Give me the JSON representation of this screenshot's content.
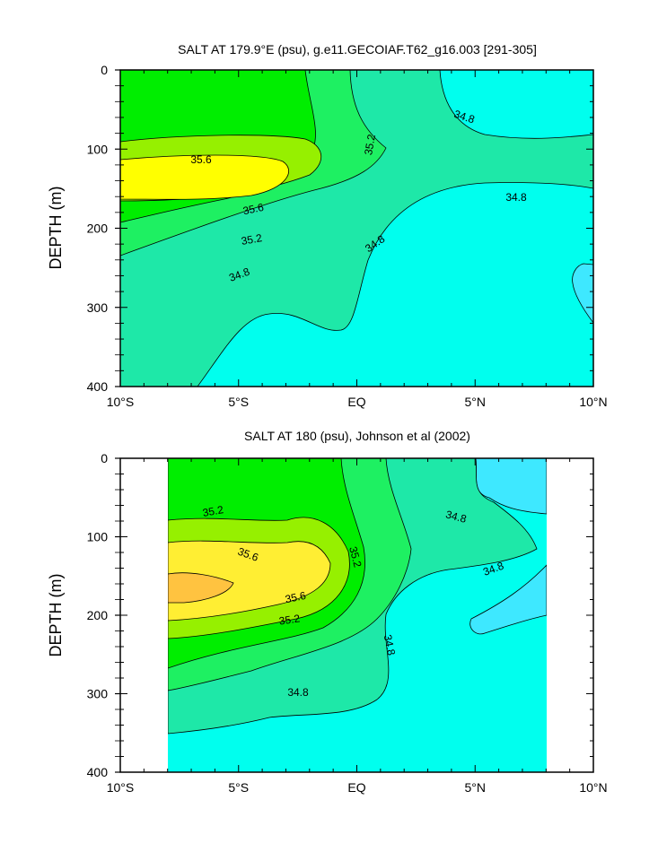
{
  "chart_data": [
    {
      "type": "contour",
      "title": "SALT AT 179.9°E (psu), g.e11.GECOIAF.T62_g16.003 [291-305]",
      "ylabel": "DEPTH (m)",
      "xlabel": "",
      "x_ticks": [
        "10°S",
        "5°S",
        "EQ",
        "5°N",
        "10°N"
      ],
      "x_range": [
        -10,
        10
      ],
      "y_ticks": [
        "0",
        "100",
        "200",
        "300",
        "400"
      ],
      "y_range": [
        0,
        400
      ],
      "y_inverted": true,
      "contour_levels": [
        34.6,
        34.8,
        35.0,
        35.2,
        35.4,
        35.6
      ],
      "fill_colors": [
        "#3ee8ff",
        "#00ffee",
        "#1ee8a8",
        "#1ef062",
        "#00ee00",
        "#96f000",
        "#ffff00"
      ],
      "contour_labels": [
        {
          "text": "34.8",
          "lat": 4.9,
          "depth": 60
        },
        {
          "text": "35.6",
          "lat": -6.4,
          "depth": 115
        },
        {
          "text": "35.2",
          "lat": 1.1,
          "depth": 118
        },
        {
          "text": "34.8",
          "lat": 6.1,
          "depth": 165
        },
        {
          "text": "35.6",
          "lat": -4.6,
          "depth": 175
        },
        {
          "text": "35.2",
          "lat": -4.8,
          "depth": 215
        },
        {
          "text": "34.8",
          "lat": 1.1,
          "depth": 223
        },
        {
          "text": "34.8",
          "lat": -5.1,
          "depth": 265
        }
      ]
    },
    {
      "type": "contour",
      "title": "SALT AT 180 (psu), Johnson et al (2002)",
      "ylabel": "DEPTH (m)",
      "xlabel": "",
      "x_ticks": [
        "10°S",
        "5°S",
        "EQ",
        "5°N",
        "10°N"
      ],
      "x_range": [
        -10,
        10
      ],
      "data_x_range": [
        -8,
        8
      ],
      "y_ticks": [
        "0",
        "100",
        "200",
        "300",
        "400"
      ],
      "y_range": [
        0,
        400
      ],
      "y_inverted": true,
      "contour_levels": [
        34.6,
        34.8,
        35.0,
        35.2,
        35.4,
        35.6,
        35.8
      ],
      "fill_colors": [
        "#3ee8ff",
        "#00ffee",
        "#1ee8a8",
        "#1ef062",
        "#00ee00",
        "#96f000",
        "#ffee33",
        "#ffc340"
      ],
      "contour_labels": [
        {
          "text": "35.2",
          "lat": -6.0,
          "depth": 75
        },
        {
          "text": "34.8",
          "lat": 3.0,
          "depth": 75
        },
        {
          "text": "35.2",
          "lat": 0.5,
          "depth": 105
        },
        {
          "text": "34.8",
          "lat": 5.4,
          "depth": 140
        },
        {
          "text": "35.6",
          "lat": -5.3,
          "depth": 128
        },
        {
          "text": "35.6",
          "lat": -1.0,
          "depth": 180
        },
        {
          "text": "35.2",
          "lat": -1.0,
          "depth": 208
        },
        {
          "text": "34.8",
          "lat": 1.3,
          "depth": 225
        },
        {
          "text": "34.8",
          "lat": -1.5,
          "depth": 300
        }
      ]
    }
  ]
}
